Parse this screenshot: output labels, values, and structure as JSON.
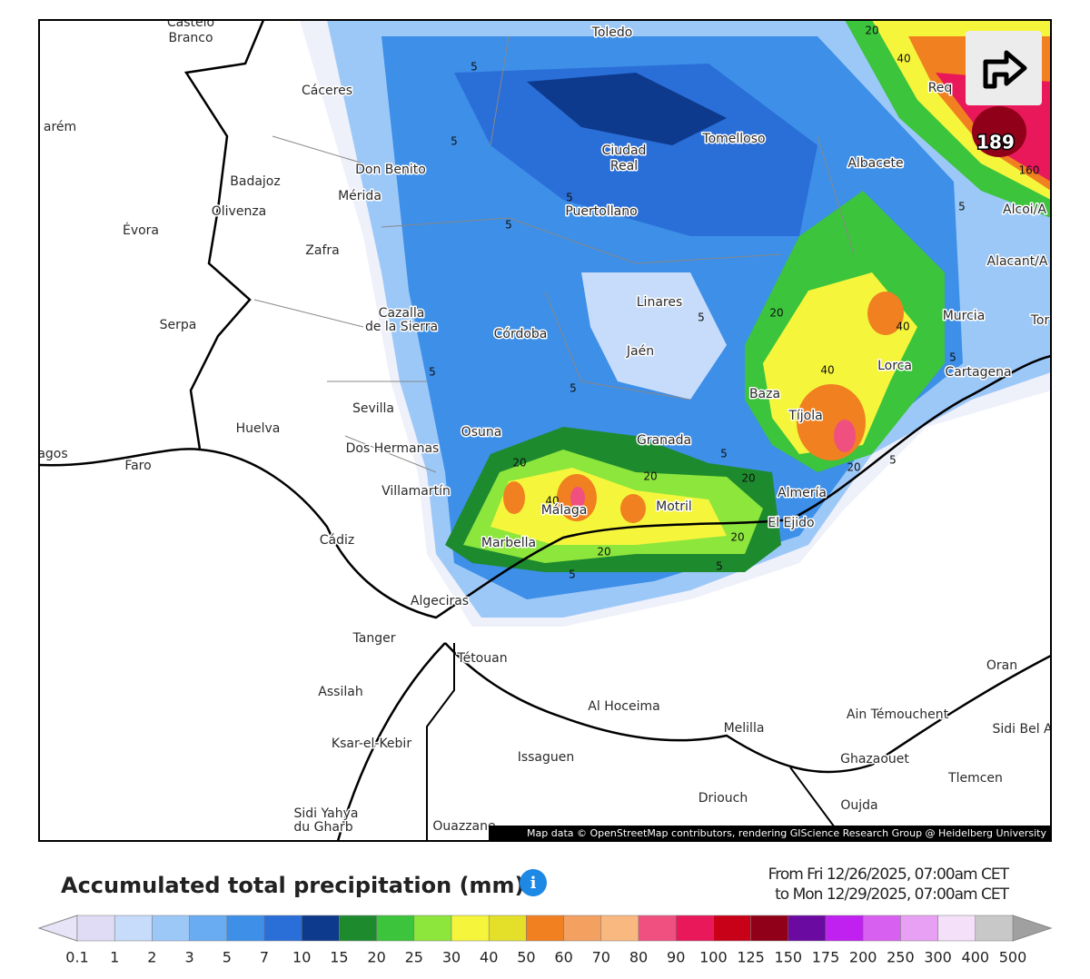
{
  "map": {
    "labels": [
      "Castelo",
      "Branco",
      "Toledo",
      "Cáceres",
      "Tomelloso",
      "Ciudad",
      "Real",
      "Albacete",
      "Don Benito",
      "Badajoz",
      "Mérida",
      "Olivenza",
      "Puertollano",
      "Évora",
      "Zafra",
      "Alcoi/A",
      "Alacant/A",
      "Linares",
      "Murcia",
      "Cazalla",
      "de la Sierra",
      "Córdoba",
      "Serpa",
      "Jaén",
      "Lorca",
      "Cartagena",
      "Baza",
      "Tíjola",
      "Sevilla",
      "Huelva",
      "Osuna",
      "Granada",
      "Dos Hermanas",
      "Faro",
      "Villamartín",
      "Almería",
      "Málaga",
      "Motril",
      "El Ejido",
      "Marbella",
      "Cádiz",
      "Algeciras",
      "Tanger",
      "Tétouan",
      "Assilah",
      "Al Hoceima",
      "Melilla",
      "Ain Témouchent",
      "Oran",
      "Sidi Bel Ab",
      "Ghazaouet",
      "Ksar-el-Kebir",
      "Issaguen",
      "Tlemcen",
      "Driouch",
      "Oujda",
      "Sidi Yahya",
      "du Gharb",
      "Ouazzane",
      "Req",
      "arém",
      "agos",
      "Tor"
    ],
    "contours": [
      "189",
      "160",
      "20",
      "40",
      "5",
      "5",
      "5",
      "5",
      "5",
      "5",
      "5",
      "5",
      "20",
      "40",
      "20",
      "20",
      "20",
      "40",
      "40",
      "20",
      "5",
      "20",
      "20",
      "5",
      "5",
      "5",
      "5"
    ],
    "attribution": "Map data © OpenStreetMap contributors, rendering GIScience Research Group @ Heidelberg University"
  },
  "legend": {
    "title": "Accumulated total precipitation (mm)",
    "date_from": "From Fri 12/26/2025, 07:00am CET",
    "date_to": "to Mon 12/29/2025, 07:00am CET",
    "ticks": [
      "0.1",
      "1",
      "2",
      "3",
      "5",
      "7",
      "10",
      "15",
      "20",
      "25",
      "30",
      "40",
      "50",
      "60",
      "70",
      "80",
      "90",
      "100",
      "125",
      "150",
      "175",
      "200",
      "250",
      "300",
      "400",
      "500"
    ],
    "colors": [
      "#e0dcf5",
      "#c6dcfa",
      "#9cc8f8",
      "#6aacf2",
      "#3d8fe8",
      "#2a6ed8",
      "#0d3a8c",
      "#1e8a2e",
      "#3cc43c",
      "#8ce63c",
      "#f5f53c",
      "#e4e02a",
      "#f08020",
      "#f4a060",
      "#f8b880",
      "#f05080",
      "#e8185a",
      "#c80018",
      "#900018",
      "#6a0aa0",
      "#c020f0",
      "#d860f0",
      "#e8a0f4",
      "#f4e0f8",
      "#c8c8c8"
    ],
    "low_color": "#e8e4f8",
    "high_color": "#a0a0a0"
  }
}
